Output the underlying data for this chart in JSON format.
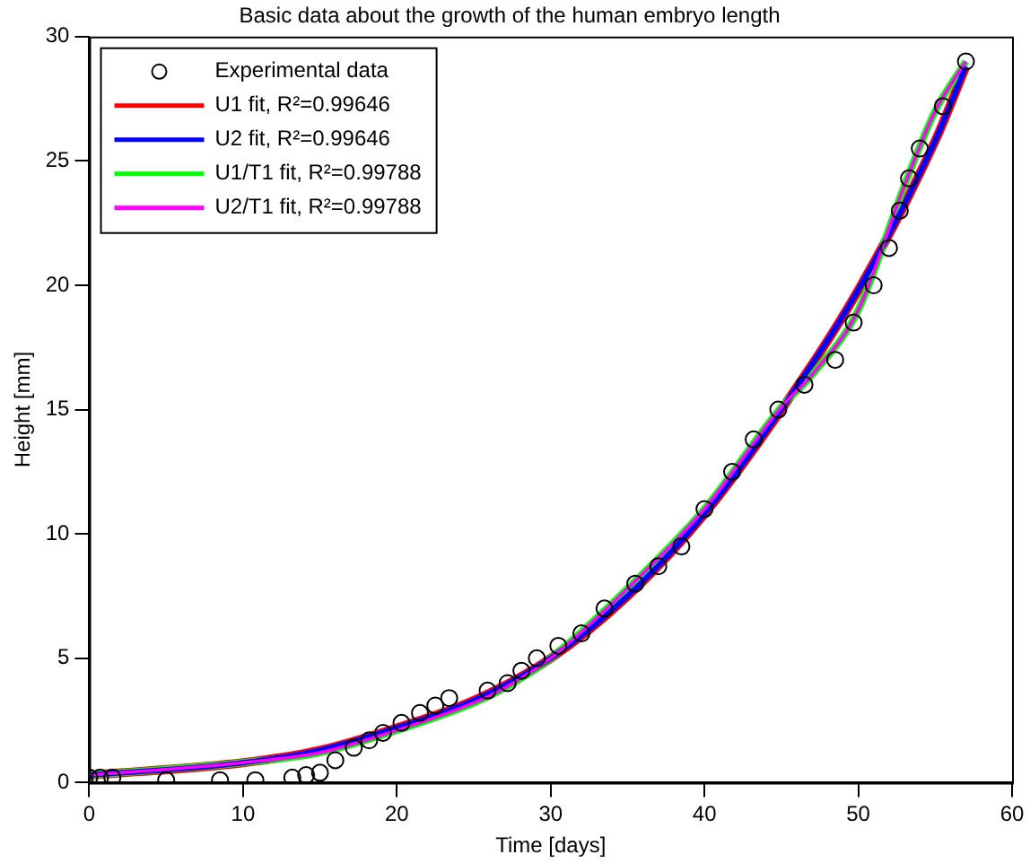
{
  "chart_data": {
    "type": "scatter",
    "title": "Basic data about the growth of the human embryo length",
    "xlabel": "Time [days]",
    "ylabel": "Height [mm]",
    "xlim": [
      0,
      60
    ],
    "xticks": [
      0,
      10,
      20,
      30,
      40,
      50,
      60
    ],
    "ylim": [
      0,
      30
    ],
    "yticks": [
      0,
      5,
      10,
      15,
      20,
      25,
      30
    ],
    "grid": false,
    "legend": "top left",
    "series": [
      {
        "name": "Experimental data",
        "type": "scatter",
        "marker": "circle",
        "color": "#000000",
        "x": [
          0,
          0.7,
          1.5,
          5,
          8.5,
          10.8,
          13.2,
          14.1,
          15,
          16,
          17.2,
          18.2,
          19.1,
          20.3,
          21.5,
          22.5,
          23.4,
          25.9,
          27.2,
          28.1,
          29.1,
          30.5,
          32,
          33.5,
          35.5,
          37,
          38.5,
          40,
          41.8,
          43.2,
          44.8,
          46.5,
          48.5,
          49.7,
          51,
          52,
          52.7,
          53.3,
          54,
          55.5,
          57
        ],
        "values": [
          0.2,
          0.2,
          0.2,
          0.1,
          0.1,
          0.1,
          0.2,
          0.3,
          0.4,
          0.9,
          1.4,
          1.7,
          2.0,
          2.4,
          2.8,
          3.1,
          3.4,
          3.7,
          4.0,
          4.5,
          5.0,
          5.5,
          6.0,
          7.0,
          8.0,
          8.7,
          9.5,
          11.0,
          12.5,
          13.8,
          15.0,
          16.0,
          17.0,
          18.5,
          20.0,
          21.5,
          23.0,
          24.3,
          25.5,
          27.2,
          29.0
        ]
      },
      {
        "name": "U1 fit, R²=0.99646",
        "type": "line",
        "marker": "none",
        "color": "#ff0000",
        "x": [
          0,
          10,
          15,
          20,
          25,
          30,
          35,
          40,
          45,
          50,
          55,
          57
        ],
        "values": [
          0.3,
          0.8,
          1.3,
          2.2,
          3.3,
          5.0,
          7.5,
          10.8,
          15.0,
          19.8,
          25.8,
          28.8
        ]
      },
      {
        "name": "U2 fit, R²=0.99646",
        "type": "line",
        "marker": "none",
        "color": "#0000ff",
        "x": [
          0,
          10,
          15,
          20,
          25,
          30,
          35,
          40,
          45,
          50,
          55,
          57
        ],
        "values": [
          0.3,
          0.8,
          1.3,
          2.2,
          3.3,
          5.0,
          7.5,
          10.8,
          15.0,
          19.8,
          25.8,
          28.8
        ]
      },
      {
        "name": "U1/T1 fit, R²=0.99788",
        "type": "line",
        "marker": "none",
        "color": "#00ff00",
        "x": [
          0,
          10,
          15,
          20,
          25,
          27,
          30,
          35,
          40,
          45,
          47,
          50,
          53,
          55,
          57
        ],
        "values": [
          0.3,
          0.8,
          1.2,
          2.1,
          3.2,
          3.8,
          5.0,
          7.8,
          11.0,
          15.1,
          16.4,
          19.0,
          24.0,
          27.0,
          29.0
        ]
      },
      {
        "name": "U2/T1 fit, R²=0.99788",
        "type": "line",
        "marker": "none",
        "color": "#ff00ff",
        "x": [
          0,
          10,
          15,
          20,
          25,
          27,
          30,
          35,
          40,
          45,
          47,
          50,
          53,
          55,
          57
        ],
        "values": [
          0.3,
          0.8,
          1.2,
          2.1,
          3.2,
          3.8,
          5.0,
          7.8,
          11.0,
          15.1,
          16.4,
          19.0,
          24.0,
          27.0,
          29.0
        ]
      }
    ]
  }
}
